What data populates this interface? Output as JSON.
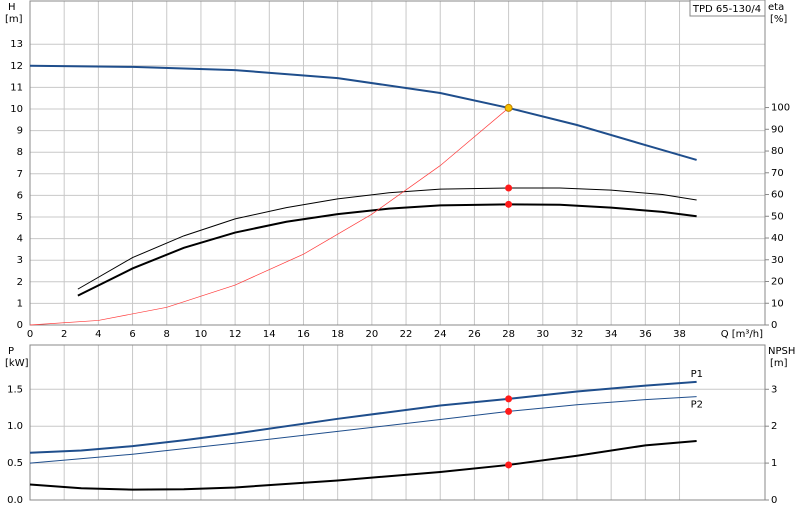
{
  "pump": "TPD 65-130/4",
  "chart_data": [
    {
      "type": "line",
      "y_label": "H",
      "y_unit": "[m]",
      "y2_label": "eta",
      "y2_unit": "[%]",
      "x_label": "Q [m³/h]",
      "xlim": [
        0,
        43
      ],
      "xticks": [
        0,
        2,
        4,
        6,
        8,
        10,
        12,
        14,
        16,
        18,
        20,
        22,
        24,
        26,
        28,
        30,
        32,
        34,
        36,
        38
      ],
      "ylim": [
        0,
        15
      ],
      "yticks": [
        0,
        1,
        2,
        3,
        4,
        5,
        6,
        7,
        8,
        9,
        10,
        11,
        12,
        13
      ],
      "y2lim": [
        0,
        149
      ],
      "y2ticks": [
        0,
        10,
        20,
        30,
        40,
        50,
        60,
        70,
        80,
        90,
        100
      ],
      "series": [
        {
          "color": "#1f4e8c",
          "width": 2,
          "x": [
            0,
            6,
            12,
            18,
            24,
            28,
            32,
            36,
            39
          ],
          "values": [
            12.0,
            11.95,
            11.8,
            11.43,
            10.74,
            10.05,
            9.26,
            8.33,
            7.64
          ]
        },
        {
          "color": "#000000",
          "width": 1,
          "axis": "y2",
          "x": [
            2.8,
            6,
            9,
            12,
            15,
            18,
            21,
            24,
            28,
            31,
            34,
            37,
            39
          ],
          "values": [
            16.5,
            31,
            41,
            48.8,
            54,
            58,
            60.8,
            62.5,
            63,
            63,
            62,
            60,
            57.5
          ]
        },
        {
          "color": "#000000",
          "width": 2,
          "axis": "y2",
          "x": [
            2.8,
            6,
            9,
            12,
            15,
            18,
            21,
            24,
            28,
            31,
            34,
            37,
            39
          ],
          "values": [
            13.5,
            26,
            35.5,
            42.5,
            47.5,
            51,
            53.5,
            55,
            55.5,
            55.3,
            54,
            52,
            50
          ]
        },
        {
          "color": "#ff3b3b",
          "width": 0.7,
          "x": [
            0,
            4,
            8,
            12,
            16,
            20,
            24,
            28
          ],
          "values": [
            0,
            0.21,
            0.82,
            1.85,
            3.28,
            5.13,
            7.38,
            10.05
          ]
        }
      ],
      "markers": [
        {
          "x": 28,
          "y": 10.05,
          "color": "#f5c000"
        },
        {
          "x": 28,
          "y": 63,
          "color": "#ff1a1a",
          "axis": "y2"
        },
        {
          "x": 28,
          "y": 55.5,
          "color": "#ff1a1a",
          "axis": "y2"
        }
      ]
    },
    {
      "type": "line",
      "y_label": "P",
      "y_unit": "[kW]",
      "y2_label": "NPSH",
      "y2_unit": "[m]",
      "xlim": [
        0,
        43
      ],
      "xticks": [
        0,
        2,
        4,
        6,
        8,
        10,
        12,
        14,
        16,
        18,
        20,
        22,
        24,
        26,
        28,
        30,
        32,
        34,
        36,
        38
      ],
      "xtick_labels": false,
      "ylim": [
        0,
        2.1
      ],
      "yticks": [
        {
          "value": 0,
          "label": "0.0"
        },
        0.5,
        {
          "value": 1,
          "label": "1.0"
        },
        1.5
      ],
      "y2lim": [
        0,
        4.2
      ],
      "y2ticks": [
        0,
        1,
        2,
        3
      ],
      "series": [
        {
          "name": "P1",
          "color": "#1f4e8c",
          "width": 2,
          "x": [
            0,
            3,
            6,
            9,
            12,
            18,
            24,
            28,
            32,
            36,
            39
          ],
          "values": [
            0.64,
            0.67,
            0.73,
            0.81,
            0.9,
            1.1,
            1.28,
            1.37,
            1.47,
            1.55,
            1.6
          ]
        },
        {
          "name": "P2",
          "color": "#1f4e8c",
          "width": 1,
          "x": [
            0,
            6,
            12,
            18,
            24,
            28,
            32,
            36,
            39
          ],
          "values": [
            0.5,
            0.62,
            0.77,
            0.93,
            1.09,
            1.2,
            1.29,
            1.36,
            1.4
          ]
        },
        {
          "color": "#000000",
          "width": 2,
          "axis": "y2",
          "x": [
            0,
            3,
            6,
            9,
            12,
            18,
            24,
            28,
            32,
            36,
            39
          ],
          "values": [
            0.42,
            0.32,
            0.28,
            0.29,
            0.34,
            0.53,
            0.76,
            0.95,
            1.2,
            1.48,
            1.6
          ]
        }
      ],
      "markers": [
        {
          "x": 28,
          "y": 1.37,
          "color": "#ff1a1a"
        },
        {
          "x": 28,
          "y": 1.2,
          "color": "#ff1a1a"
        },
        {
          "x": 28,
          "y": 0.95,
          "color": "#ff1a1a",
          "axis": "y2"
        }
      ]
    }
  ]
}
